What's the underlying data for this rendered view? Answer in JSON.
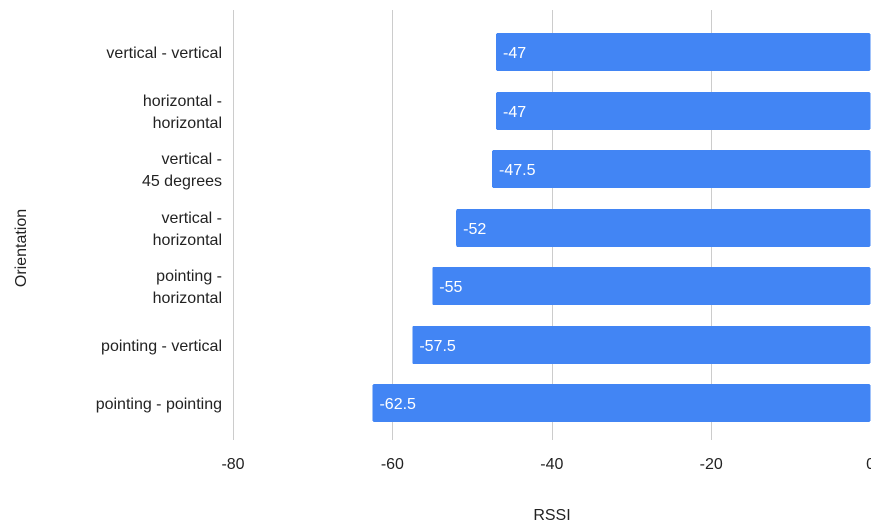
{
  "chart_data": {
    "type": "bar",
    "orientation": "horizontal",
    "categories": [
      "vertical - vertical",
      "horizontal - horizontal",
      "vertical - 45 degrees",
      "vertical - horizontal",
      "pointing - horizontal",
      "pointing - vertical",
      "pointing - pointing"
    ],
    "values": [
      -47,
      -47,
      -47.5,
      -52,
      -55,
      -57.5,
      -62.5
    ],
    "data_labels": [
      "-47",
      "-47",
      "-47.5",
      "-52",
      "-55",
      "-57.5",
      "-62.5"
    ],
    "xlabel": "RSSI",
    "ylabel": "Orientation",
    "xlim": [
      -80,
      0
    ],
    "x_ticks": [
      -80,
      -60,
      -40,
      -20,
      0
    ],
    "x_tick_labels": [
      "-80",
      "-60",
      "-40",
      "-20",
      "0"
    ],
    "grid": true,
    "legend": "none",
    "bar_color": "#4285f4",
    "grid_color": "#cccccc"
  }
}
